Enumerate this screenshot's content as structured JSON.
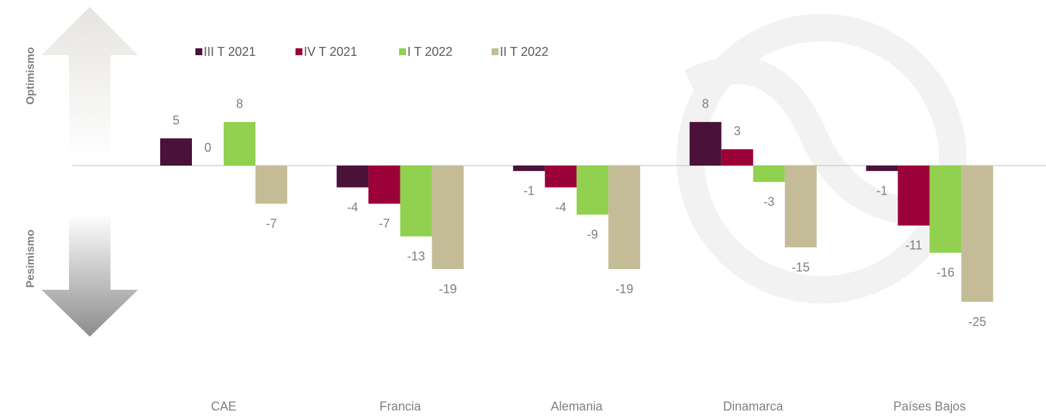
{
  "chart_data": {
    "type": "bar",
    "annotations": [
      "Optimismo",
      "Pesimismo"
    ],
    "categories": [
      "CAE",
      "Francia",
      "Alemania",
      "Dinamarca",
      "Países Bajos"
    ],
    "series": [
      {
        "name": "III T 2021",
        "color": "#4a1238",
        "values": [
          5,
          -4,
          -1,
          8,
          -1
        ]
      },
      {
        "name": "IV T 2021",
        "color": "#9b0038",
        "values": [
          0,
          -7,
          -4,
          3,
          -11
        ]
      },
      {
        "name": "I T 2022",
        "color": "#92d050",
        "values": [
          8,
          -13,
          -9,
          -3,
          -16
        ]
      },
      {
        "name": "II T 2022",
        "color": "#c4bc96",
        "values": [
          -7,
          -19,
          -19,
          -15,
          -25
        ]
      }
    ],
    "ylim": [
      -30,
      10
    ]
  }
}
